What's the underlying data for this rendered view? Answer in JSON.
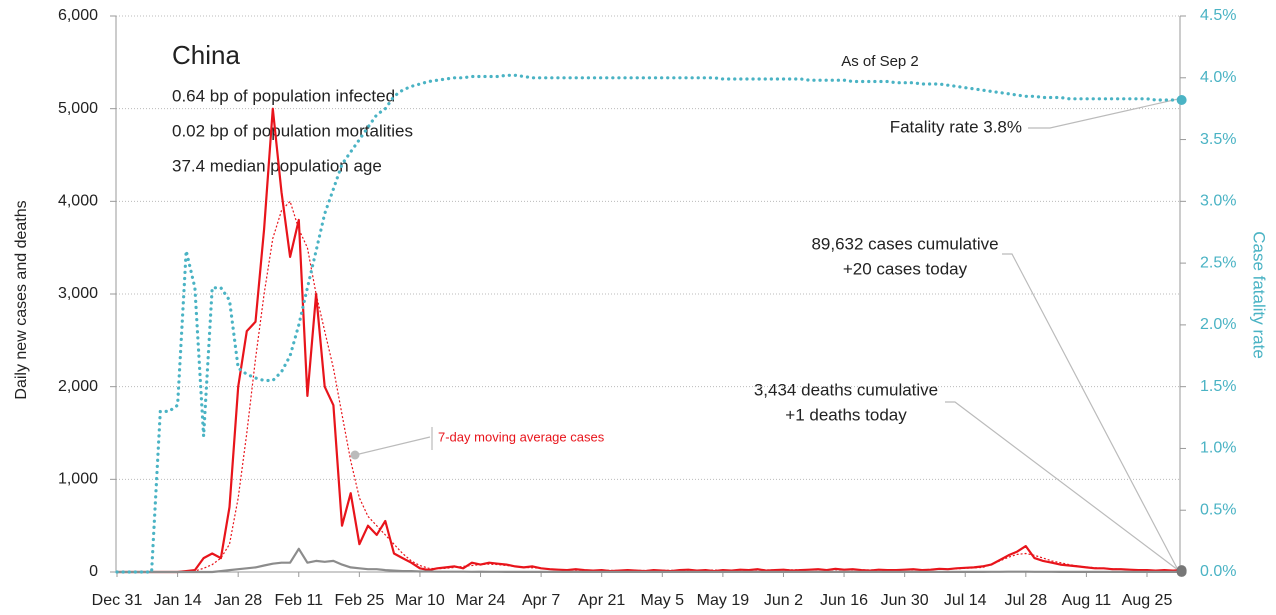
{
  "chart_data": {
    "type": "line",
    "title": "China",
    "annotations": [
      "0.64 bp of population infected",
      "0.02 bp of population mortalities",
      "37.4 median population age",
      "As of Sep 2",
      "Fatality rate 3.8%",
      "89,632 cases cumulative",
      "+20 cases today",
      "3,434 deaths cumulative",
      "+1 deaths today"
    ],
    "ylabel": "Daily new cases and deaths",
    "y2label": "Case fatality rate",
    "categories": [
      "Dec 31",
      null,
      null,
      null,
      null,
      null,
      null,
      "Jan 14",
      null,
      null,
      null,
      null,
      null,
      null,
      "Jan 28",
      null,
      null,
      null,
      null,
      null,
      null,
      "Feb 11",
      null,
      null,
      null,
      null,
      null,
      null,
      "Feb 25",
      null,
      null,
      null,
      null,
      null,
      null,
      "Mar 10",
      null,
      null,
      null,
      null,
      null,
      null,
      "Mar 24",
      null,
      null,
      null,
      null,
      null,
      null,
      "Apr 7",
      null,
      null,
      null,
      null,
      null,
      null,
      "Apr 21",
      null,
      null,
      null,
      null,
      null,
      null,
      "May 5",
      null,
      null,
      null,
      null,
      null,
      null,
      "May 19",
      null,
      null,
      null,
      null,
      null,
      null,
      "Jun 2",
      null,
      null,
      null,
      null,
      null,
      null,
      "Jun 16",
      null,
      null,
      null,
      null,
      null,
      null,
      "Jun 30",
      null,
      null,
      null,
      null,
      null,
      null,
      "Jul 14",
      null,
      null,
      null,
      null,
      null,
      null,
      "Jul 28",
      null,
      null,
      null,
      null,
      null,
      null,
      "Aug 11",
      null,
      null,
      null,
      null,
      null,
      null,
      "Aug 25",
      null,
      null,
      null,
      null
    ],
    "series": [
      {
        "color": "#e8141b",
        "style": "solid",
        "values": [
          0,
          0,
          0,
          0,
          0,
          0,
          0,
          0,
          10,
          20,
          150,
          200,
          150,
          700,
          2000,
          2600,
          2700,
          3700,
          5000,
          4100,
          3400,
          3800,
          1900,
          3000,
          2000,
          1800,
          500,
          850,
          300,
          500,
          400,
          550,
          200,
          150,
          100,
          40,
          20,
          40,
          50,
          60,
          40,
          100,
          80,
          100,
          90,
          80,
          60,
          50,
          60,
          40,
          30,
          25,
          20,
          30,
          20,
          15,
          20,
          10,
          15,
          20,
          15,
          10,
          20,
          15,
          10,
          20,
          25,
          15,
          20,
          10,
          20,
          15,
          25,
          20,
          30,
          15,
          20,
          25,
          15,
          20,
          25,
          30,
          20,
          35,
          25,
          30,
          20,
          15,
          25,
          20,
          20,
          25,
          30,
          20,
          25,
          35,
          30,
          40,
          45,
          50,
          60,
          80,
          130,
          180,
          220,
          280,
          150,
          120,
          100,
          80,
          70,
          60,
          50,
          40,
          40,
          30,
          30,
          25,
          20,
          20,
          15,
          20,
          15,
          20
        ]
      },
      {
        "name": "7-day moving average cases",
        "color": "#e8141b",
        "style": "dotted",
        "values": [
          0,
          0,
          0,
          0,
          0,
          0,
          0,
          0,
          5,
          10,
          40,
          80,
          150,
          300,
          800,
          1500,
          2300,
          3000,
          3600,
          3900,
          4000,
          3700,
          3500,
          3000,
          2600,
          2200,
          1700,
          1200,
          800,
          600,
          500,
          400,
          300,
          200,
          120,
          70,
          40,
          35,
          40,
          50,
          60,
          70,
          80,
          85,
          80,
          70,
          60,
          50,
          45,
          40,
          30,
          25,
          22,
          20,
          20,
          18,
          18,
          17,
          16,
          16,
          16,
          16,
          17,
          17,
          18,
          18,
          19,
          19,
          20,
          20,
          20,
          20,
          21,
          21,
          22,
          22,
          22,
          23,
          23,
          23,
          24,
          24,
          25,
          25,
          24,
          24,
          23,
          22,
          22,
          22,
          22,
          23,
          24,
          25,
          27,
          29,
          31,
          35,
          40,
          45,
          50,
          80,
          120,
          160,
          190,
          200,
          180,
          150,
          120,
          100,
          80,
          65,
          55,
          45,
          40,
          35,
          30,
          25,
          22,
          20,
          18,
          18,
          17,
          17
        ]
      },
      {
        "color": "#8c8c8c",
        "style": "solid",
        "values": [
          0,
          0,
          0,
          0,
          0,
          0,
          0,
          0,
          0,
          0,
          0,
          0,
          10,
          20,
          30,
          40,
          50,
          70,
          90,
          100,
          100,
          250,
          100,
          120,
          110,
          120,
          80,
          50,
          40,
          30,
          30,
          20,
          15,
          10,
          10,
          5,
          5,
          3,
          3,
          3,
          3,
          2,
          3,
          2,
          2,
          1,
          2,
          1,
          1,
          1,
          1,
          1,
          1,
          1,
          1,
          1,
          1,
          1,
          1,
          1,
          1,
          1,
          1,
          1,
          1,
          1,
          1,
          1,
          1,
          1,
          1,
          1,
          1,
          1,
          1,
          1,
          1,
          1,
          1,
          1,
          1,
          1,
          1,
          1,
          1,
          1,
          1,
          1,
          1,
          1,
          1,
          1,
          1,
          1,
          1,
          1,
          1,
          1,
          1,
          1,
          1,
          2,
          2,
          3,
          3,
          3,
          2,
          2,
          2,
          1,
          1,
          1,
          1,
          1,
          1,
          1,
          1,
          1,
          1,
          1,
          1,
          1,
          1,
          1
        ]
      },
      {
        "axis": "y2",
        "color": "#4ab3c4",
        "style": "teal-dots",
        "values": [
          0,
          0,
          0,
          0,
          0,
          1.3,
          1.3,
          1.35,
          2.6,
          2.3,
          1.1,
          2.3,
          2.3,
          2.2,
          1.65,
          1.6,
          1.57,
          1.55,
          1.55,
          1.62,
          1.75,
          2.0,
          2.3,
          2.6,
          2.9,
          3.1,
          3.3,
          3.4,
          3.5,
          3.6,
          3.7,
          3.75,
          3.85,
          3.9,
          3.93,
          3.95,
          3.97,
          3.98,
          3.99,
          4.0,
          4.0,
          4.01,
          4.01,
          4.01,
          4.01,
          4.02,
          4.02,
          4.01,
          4.0,
          4.0,
          4.0,
          4.0,
          4.0,
          4.0,
          4.0,
          4.0,
          4.0,
          4.0,
          4.0,
          4.0,
          4.0,
          4.0,
          4.0,
          4.0,
          4.0,
          4.0,
          4.0,
          4.0,
          4.0,
          4.0,
          3.99,
          3.99,
          3.99,
          3.99,
          3.99,
          3.99,
          3.99,
          3.99,
          3.99,
          3.99,
          3.98,
          3.98,
          3.98,
          3.98,
          3.98,
          3.97,
          3.97,
          3.97,
          3.97,
          3.97,
          3.96,
          3.96,
          3.96,
          3.95,
          3.95,
          3.95,
          3.94,
          3.93,
          3.92,
          3.91,
          3.9,
          3.89,
          3.88,
          3.87,
          3.86,
          3.85,
          3.85,
          3.84,
          3.84,
          3.84,
          3.83,
          3.83,
          3.83,
          3.83,
          3.83,
          3.83,
          3.83,
          3.83,
          3.83,
          3.83,
          3.82,
          3.82,
          3.82,
          3.82
        ]
      }
    ],
    "ylim": [
      0,
      6000
    ],
    "yticks": [
      0,
      {
        "value": 1000,
        "label": "1,000"
      },
      {
        "value": 2000,
        "label": "2,000"
      },
      {
        "value": 3000,
        "label": "3,000"
      },
      {
        "value": 4000,
        "label": "4,000"
      },
      {
        "value": 5000,
        "label": "5,000"
      },
      {
        "value": 6000,
        "label": "6,000"
      }
    ],
    "y2lim": [
      0,
      4.5
    ],
    "y2ticks": [
      {
        "value": 0,
        "label": "0.0%"
      },
      {
        "value": 0.5,
        "label": "0.5%"
      },
      {
        "value": 1,
        "label": "1.0%"
      },
      {
        "value": 1.5,
        "label": "1.5%"
      },
      {
        "value": 2,
        "label": "2.0%"
      },
      {
        "value": 2.5,
        "label": "2.5%"
      },
      {
        "value": 3,
        "label": "3.0%"
      },
      {
        "value": 3.5,
        "label": "3.5%"
      },
      {
        "value": 4,
        "label": "4.0%"
      },
      {
        "value": 4.5,
        "label": "4.5%"
      }
    ],
    "grid": true
  }
}
